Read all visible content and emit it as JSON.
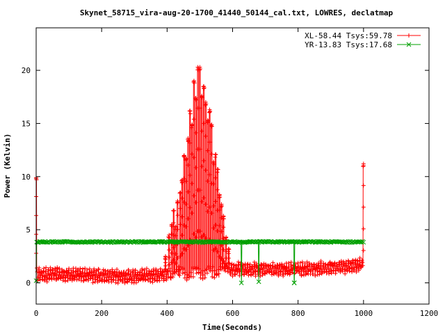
{
  "chart_data": {
    "type": "line",
    "title": "Skynet_58715_vira-aug-20-1700_41440_50144_cal.txt, LOWRES, declatmap",
    "xlabel": "Time(Seconds)",
    "ylabel": "Power (Kelvin)",
    "xlim": [
      0,
      1200
    ],
    "ylim": [
      -2,
      24
    ],
    "xticks": [
      0,
      200,
      400,
      600,
      800,
      1000,
      1200
    ],
    "yticks": [
      0,
      5,
      10,
      15,
      20
    ],
    "grid": false,
    "legend_position": "top-right",
    "series": [
      {
        "name": "XL-58.44 Tsys:59.78",
        "color": "#ff0000",
        "marker": "plus",
        "scan_period_s": 7.0,
        "baseline": [
          [
            0,
            0.8
          ],
          [
            200,
            0.7
          ],
          [
            300,
            0.6
          ],
          [
            400,
            0.8
          ],
          [
            500,
            1.0
          ],
          [
            600,
            1.3
          ],
          [
            700,
            1.3
          ],
          [
            800,
            1.3
          ],
          [
            900,
            1.4
          ],
          [
            1000,
            1.7
          ]
        ],
        "peaks": [
          [
            0,
            9.9
          ],
          [
            395,
            2.5
          ],
          [
            406,
            4.5
          ],
          [
            414,
            5.5
          ],
          [
            420,
            6.8
          ],
          [
            426,
            5.3
          ],
          [
            432,
            7.7
          ],
          [
            440,
            8.5
          ],
          [
            446,
            9.7
          ],
          [
            452,
            12.0
          ],
          [
            458,
            11.7
          ],
          [
            464,
            13.6
          ],
          [
            470,
            16.2
          ],
          [
            476,
            14.9
          ],
          [
            482,
            19.0
          ],
          [
            488,
            17.4
          ],
          [
            494,
            20.3
          ],
          [
            500,
            20.3
          ],
          [
            506,
            17.6
          ],
          [
            512,
            18.5
          ],
          [
            518,
            17.0
          ],
          [
            524,
            15.3
          ],
          [
            530,
            16.3
          ],
          [
            536,
            14.9
          ],
          [
            542,
            11.4
          ],
          [
            548,
            12.1
          ],
          [
            554,
            10.7
          ],
          [
            560,
            8.3
          ],
          [
            566,
            7.4
          ],
          [
            572,
            6.3
          ],
          [
            580,
            4.3
          ],
          [
            588,
            3.2
          ],
          [
            1000,
            11.2
          ]
        ],
        "sample_count": 1800
      },
      {
        "name": "YR-13.83 Tsys:17.68",
        "color": "#00a000",
        "marker": "x",
        "level": 3.85,
        "dropouts": [
          [
            0,
            0.2
          ],
          [
            627,
            0.0
          ],
          [
            680,
            0.1
          ],
          [
            788,
            0.0
          ]
        ],
        "sample_count": 700
      }
    ]
  }
}
